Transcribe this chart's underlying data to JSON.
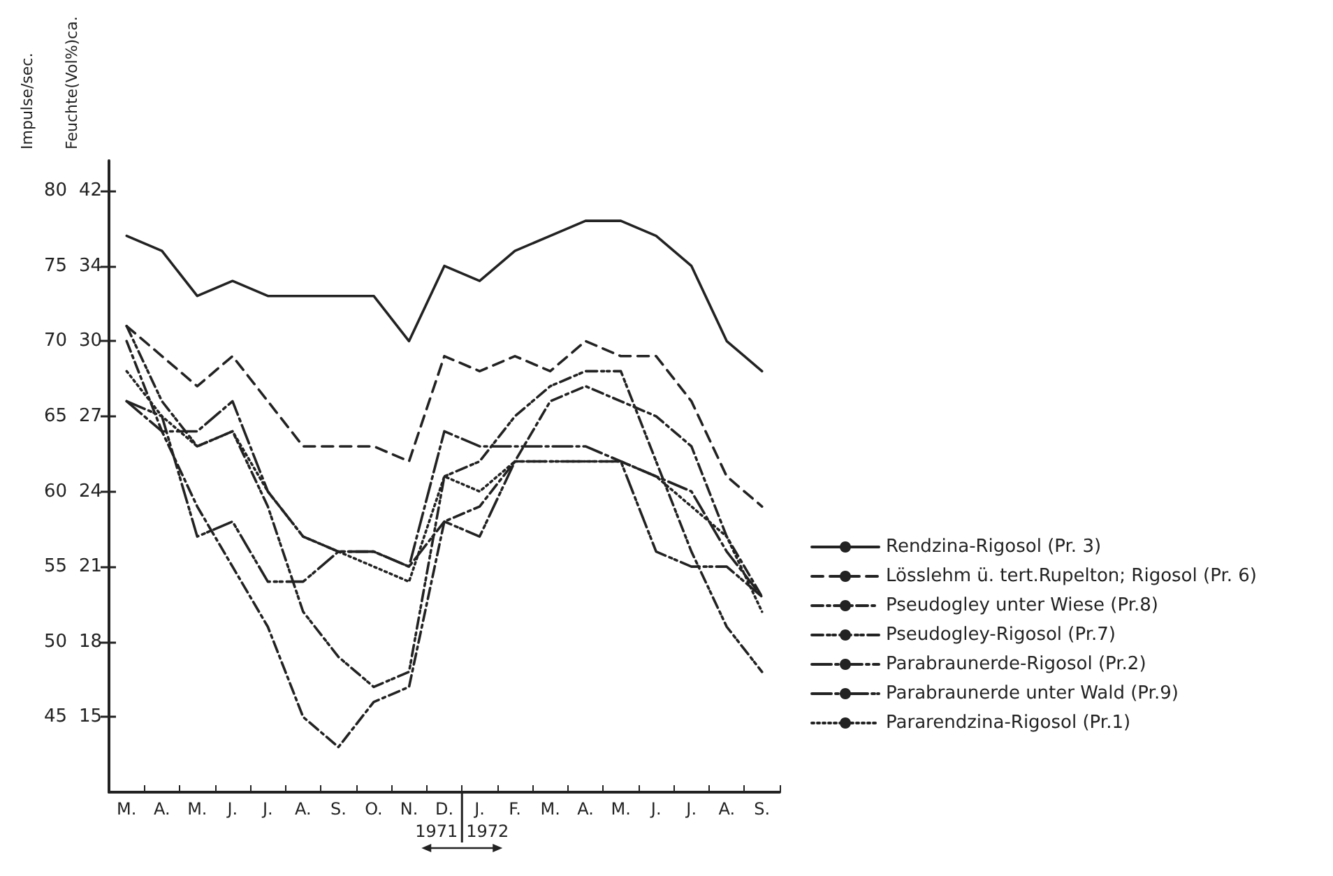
{
  "chart_data": {
    "type": "line",
    "ylabel": "Impulse/sec.",
    "y2label": "Feuchte(Vol%)ca.",
    "categories": [
      "M.",
      "A.",
      "M.",
      "J.",
      "J.",
      "A.",
      "S.",
      "O.",
      "N.",
      "D.",
      "J.",
      "F.",
      "M.",
      "A.",
      "M.",
      "J.",
      "J.",
      "A.",
      "S."
    ],
    "ylim": [
      40,
      82
    ],
    "yticks": [
      45,
      50,
      55,
      60,
      65,
      70,
      75,
      80
    ],
    "y2_categories": [
      null,
      null,
      null,
      null,
      null,
      "15",
      null,
      null,
      null,
      null,
      "18",
      null,
      null,
      null,
      null,
      "21",
      null,
      null,
      null,
      null,
      "24",
      null,
      null,
      null,
      null,
      "27",
      null,
      null,
      null,
      null,
      "30",
      null,
      null,
      null,
      null,
      "34",
      null,
      null,
      null,
      null,
      "42",
      null,
      null
    ],
    "series": [
      {
        "name": "Rendzina-Rigosol (Pr. 3)",
        "color": "#222222",
        "line_style": "solid",
        "values": [
          77,
          76,
          73,
          74,
          73,
          73,
          73,
          73,
          70,
          75,
          74,
          76,
          77,
          78,
          78,
          77,
          75,
          70,
          68
        ]
      },
      {
        "name": "Lösslehm ü. tert.Rupelton; Rigosol (Pr. 6)",
        "color": "#222222",
        "line_style": "dashed",
        "values": [
          71,
          69,
          67,
          69,
          66,
          63,
          63,
          63,
          62,
          69,
          68,
          69,
          68,
          70,
          69,
          69,
          66,
          61,
          59
        ]
      },
      {
        "name": "Pseudogley unter Wiese (Pr.8)",
        "color": "#222222",
        "line_style": "dashdot",
        "values": [
          70,
          64,
          59,
          55,
          51,
          45,
          43,
          46,
          47,
          58,
          59,
          62,
          66,
          67,
          66,
          65,
          63,
          57,
          53
        ]
      },
      {
        "name": "Pseudogley-Rigosol (Pr.7)",
        "color": "#222222",
        "line_style": "dashdotdot",
        "values": [
          71,
          66,
          63,
          64,
          59,
          52,
          49,
          47,
          48,
          61,
          62,
          65,
          67,
          68,
          68,
          62,
          56,
          51,
          48
        ]
      },
      {
        "name": "Parabraunerde-Rigosol (Pr.2)",
        "color": "#222222",
        "line_style": "longdashdot",
        "values": [
          66,
          64,
          64,
          66,
          60,
          57,
          56,
          56,
          55,
          64,
          63,
          63,
          63,
          63,
          62,
          61,
          60,
          56,
          53
        ]
      },
      {
        "name": "Parabraunerde unter Wald (Pr.9)",
        "color": "#222222",
        "line_style": "longdashdotdot",
        "values": [
          66,
          65,
          57,
          58,
          54,
          54,
          56,
          56,
          55,
          58,
          57,
          62,
          62,
          62,
          62,
          56,
          55,
          55,
          53
        ]
      },
      {
        "name": "Pararendzina-Rigosol (Pr.1)",
        "color": "#222222",
        "line_style": "dotted",
        "values": [
          68,
          65,
          63,
          64,
          60,
          57,
          56,
          55,
          54,
          61,
          60,
          62,
          62,
          62,
          62,
          61,
          59,
          57,
          52
        ]
      }
    ],
    "legend": "right",
    "grid": false,
    "marker": "none",
    "annotations": [
      "1971",
      "1972"
    ]
  }
}
